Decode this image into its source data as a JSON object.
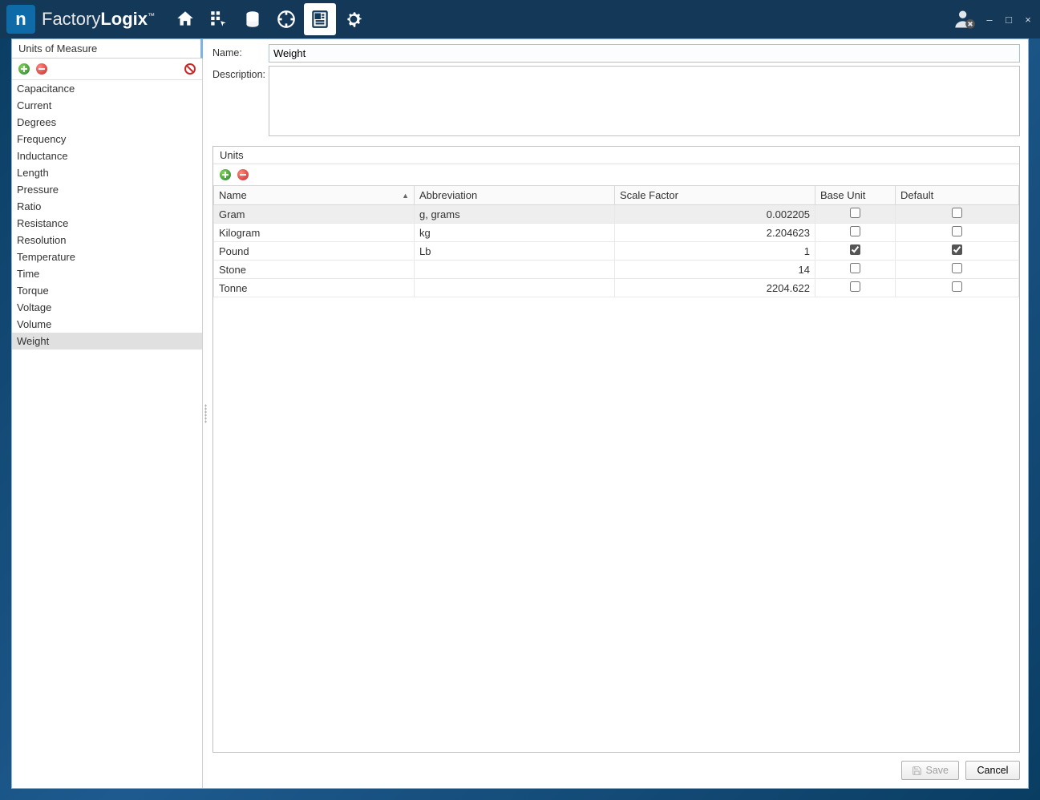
{
  "brand": {
    "first": "Factory",
    "second": "Logix"
  },
  "window_controls": {
    "min": "–",
    "max": "□",
    "close": "×"
  },
  "sidebar": {
    "title": "Units of Measure",
    "items": [
      "Capacitance",
      "Current",
      "Degrees",
      "Frequency",
      "Inductance",
      "Length",
      "Pressure",
      "Ratio",
      "Resistance",
      "Resolution",
      "Temperature",
      "Time",
      "Torque",
      "Voltage",
      "Volume",
      "Weight"
    ],
    "selected_index": 15
  },
  "form": {
    "name_label": "Name:",
    "name_value": "Weight",
    "desc_label": "Description:",
    "desc_value": ""
  },
  "units_panel": {
    "title": "Units",
    "columns": {
      "name": "Name",
      "abbr": "Abbreviation",
      "scale": "Scale Factor",
      "base": "Base Unit",
      "default": "Default"
    },
    "sort_column": "name",
    "rows": [
      {
        "name": "Gram",
        "abbr": "g, grams",
        "scale": "0.002205",
        "base": false,
        "default": false,
        "highlight": true
      },
      {
        "name": "Kilogram",
        "abbr": "kg",
        "scale": "2.204623",
        "base": false,
        "default": false,
        "highlight": false
      },
      {
        "name": "Pound",
        "abbr": "Lb",
        "scale": "1",
        "base": true,
        "default": true,
        "highlight": false
      },
      {
        "name": "Stone",
        "abbr": "",
        "scale": "14",
        "base": false,
        "default": false,
        "highlight": false
      },
      {
        "name": "Tonne",
        "abbr": "",
        "scale": "2204.622",
        "base": false,
        "default": false,
        "highlight": false
      }
    ]
  },
  "footer": {
    "save": "Save",
    "cancel": "Cancel",
    "save_disabled": true
  },
  "colors": {
    "titlebar_bg": "#143858",
    "accent": "#0e6ba8",
    "border": "#c0c0c0",
    "selected_row": "#e0e0e0"
  }
}
